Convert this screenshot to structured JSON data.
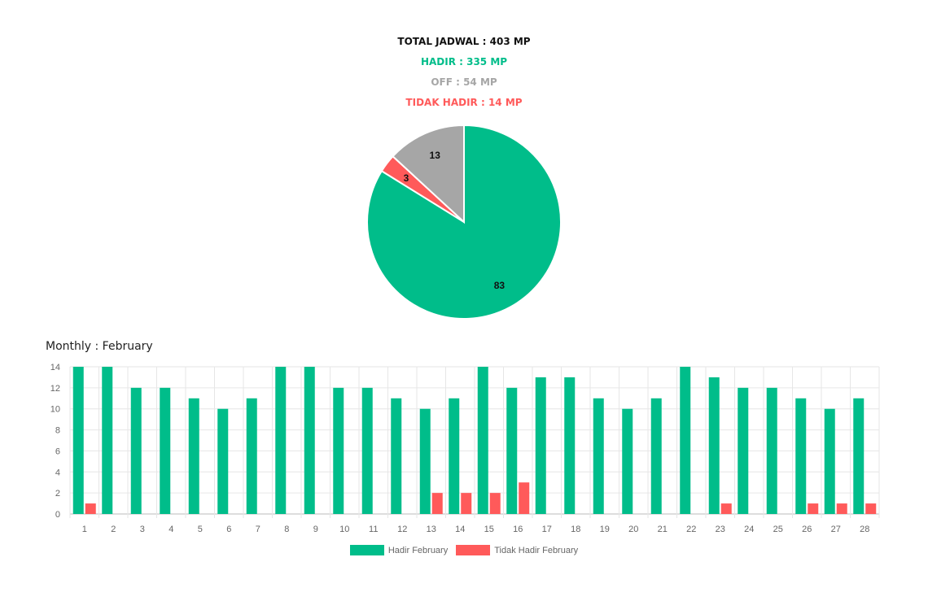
{
  "summary": {
    "total": "TOTAL JADWAL : 403 MP",
    "hadir": "HADIR : 335 MP",
    "off": "OFF : 54 MP",
    "tidak_hadir": "TIDAK HADIR : 14 MP"
  },
  "colors": {
    "hadir": "#00bd8a",
    "off": "#a6a6a6",
    "tidak_hadir": "#ff5a5a"
  },
  "chart_data": [
    {
      "type": "pie",
      "slices": [
        {
          "label": "83",
          "value": 83,
          "color": "#00bd8a"
        },
        {
          "label": "3",
          "value": 3,
          "color": "#ff5a5a"
        },
        {
          "label": "13",
          "value": 13,
          "color": "#a6a6a6"
        }
      ]
    },
    {
      "type": "bar",
      "title": "Monthly : February",
      "categories": [
        "1",
        "2",
        "3",
        "4",
        "5",
        "6",
        "7",
        "8",
        "9",
        "10",
        "11",
        "12",
        "13",
        "14",
        "15",
        "16",
        "17",
        "18",
        "19",
        "20",
        "21",
        "22",
        "23",
        "24",
        "25",
        "26",
        "27",
        "28"
      ],
      "series": [
        {
          "name": "Hadir February",
          "color": "#00bd8a",
          "values": [
            14,
            14,
            12,
            12,
            11,
            10,
            11,
            14,
            14,
            12,
            12,
            11,
            10,
            11,
            14,
            12,
            13,
            13,
            11,
            10,
            11,
            14,
            13,
            12,
            12,
            11,
            10,
            11
          ]
        },
        {
          "name": "Tidak Hadir February",
          "color": "#ff5a5a",
          "values": [
            1,
            0,
            0,
            0,
            0,
            0,
            0,
            0,
            0,
            0,
            0,
            0,
            2,
            2,
            2,
            3,
            0,
            0,
            0,
            0,
            0,
            0,
            1,
            0,
            0,
            1,
            1,
            1
          ]
        }
      ],
      "yticks": [
        "0",
        "2",
        "4",
        "6",
        "8",
        "10",
        "12",
        "14"
      ],
      "ylim": [
        0,
        14
      ],
      "grid": true,
      "legend": "bottom"
    }
  ]
}
